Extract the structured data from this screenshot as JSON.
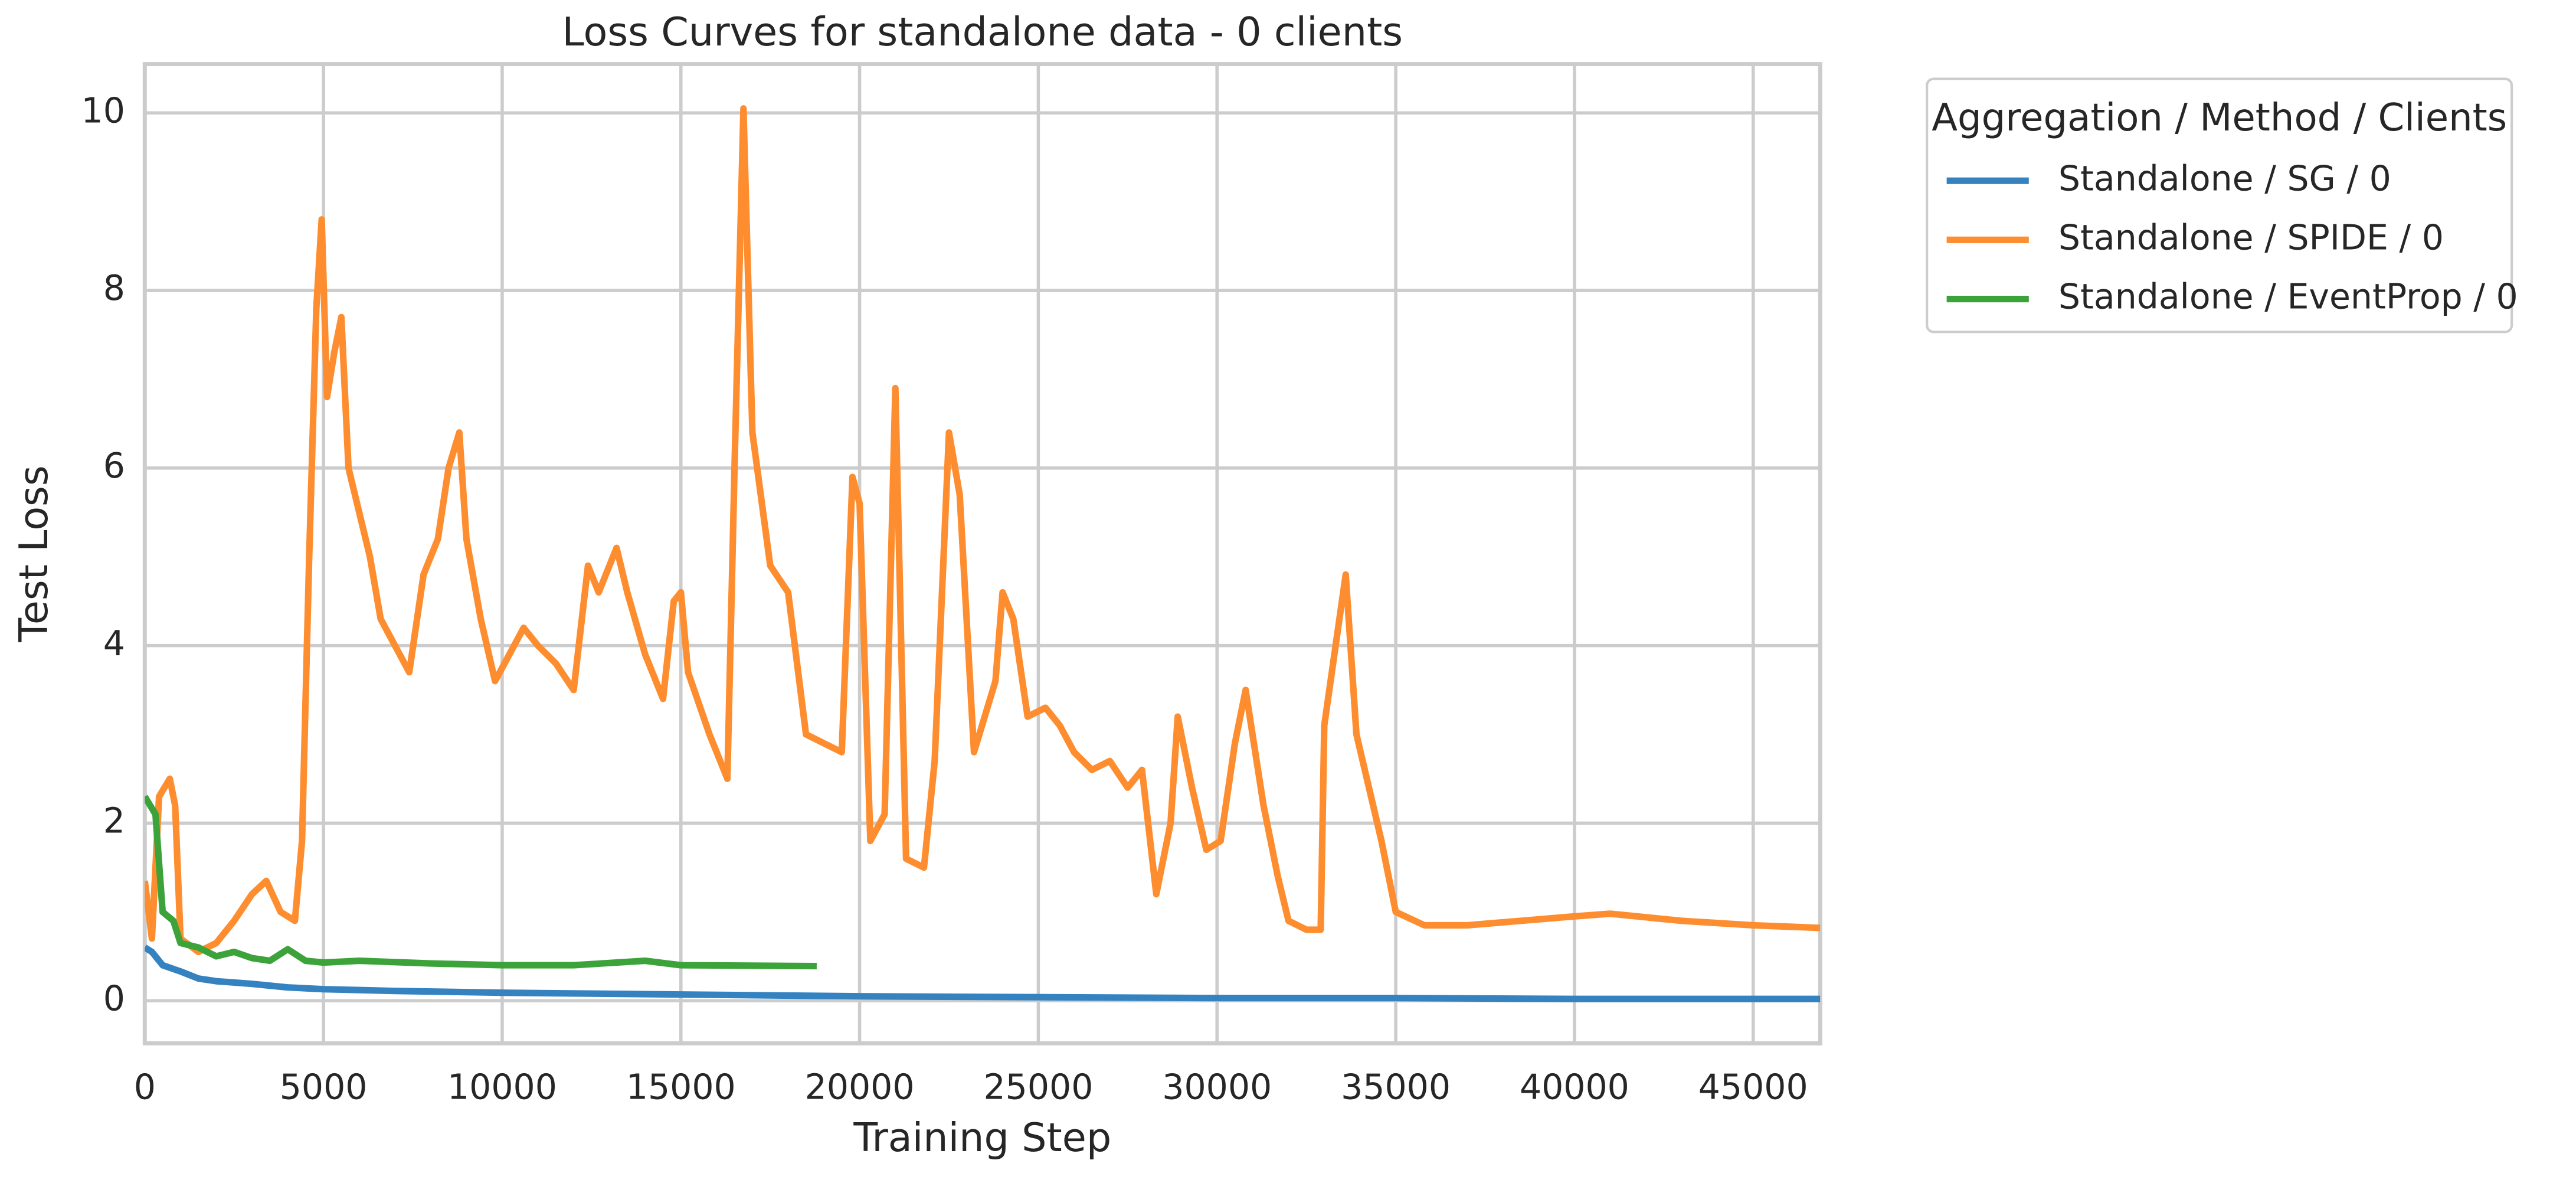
{
  "chart_data": {
    "type": "line",
    "title": "Loss Curves for standalone data - 0 clients",
    "x_label": "Training Step",
    "y_label": "Test Loss",
    "legend_title": "Aggregation / Method / Clients",
    "legend_position": "outside upper right",
    "grid": true,
    "xlim": [
      0,
      46875
    ],
    "ylim": [
      -0.48,
      10.55
    ],
    "xticks": [
      0,
      5000,
      10000,
      15000,
      20000,
      25000,
      30000,
      35000,
      40000,
      45000
    ],
    "yticks": [
      0,
      2,
      4,
      6,
      8,
      10
    ],
    "series": [
      {
        "name": "Standalone / SG / 0",
        "color": "#3582c0",
        "x": [
          0,
          200,
          500,
          1000,
          1500,
          2000,
          3000,
          4000,
          5000,
          7000,
          10000,
          15000,
          20000,
          25000,
          30000,
          35000,
          40000,
          46875
        ],
        "values": [
          0.6,
          0.55,
          0.4,
          0.33,
          0.25,
          0.22,
          0.19,
          0.15,
          0.13,
          0.11,
          0.09,
          0.07,
          0.05,
          0.04,
          0.03,
          0.03,
          0.02,
          0.02
        ]
      },
      {
        "name": "Standalone / SPIDE / 0",
        "color": "#fd8d2e",
        "x": [
          0,
          200,
          400,
          700,
          850,
          1000,
          1500,
          2000,
          2500,
          3000,
          3400,
          3800,
          4200,
          4400,
          4600,
          4800,
          4950,
          5100,
          5300,
          5500,
          5700,
          6000,
          6300,
          6600,
          7000,
          7400,
          7800,
          8200,
          8500,
          8800,
          9000,
          9400,
          9800,
          10200,
          10600,
          11000,
          11500,
          12000,
          12400,
          12700,
          13200,
          13500,
          14000,
          14500,
          14800,
          15000,
          15200,
          15800,
          16300,
          16500,
          16750,
          17000,
          17500,
          18000,
          18500,
          19000,
          19500,
          19800,
          20000,
          20300,
          20700,
          21000,
          21300,
          21800,
          22100,
          22500,
          22800,
          23200,
          23800,
          24000,
          24300,
          24700,
          25200,
          25600,
          26000,
          26500,
          27000,
          27500,
          27900,
          28300,
          28700,
          28900,
          29300,
          29700,
          30100,
          30500,
          30800,
          31300,
          31700,
          32000,
          32500,
          32900,
          33000,
          33600,
          33900,
          34600,
          35000,
          35800,
          37000,
          38500,
          40000,
          41000,
          43000,
          45000,
          46875
        ],
        "values": [
          1.35,
          0.7,
          2.3,
          2.5,
          2.2,
          0.7,
          0.55,
          0.65,
          0.9,
          1.2,
          1.35,
          1.0,
          0.9,
          1.8,
          5.0,
          7.8,
          8.8,
          6.8,
          7.3,
          7.7,
          6.0,
          5.5,
          5.0,
          4.3,
          4.0,
          3.7,
          4.8,
          5.2,
          6.0,
          6.4,
          5.2,
          4.3,
          3.6,
          3.9,
          4.2,
          4.0,
          3.8,
          3.5,
          4.9,
          4.6,
          5.1,
          4.6,
          3.9,
          3.4,
          4.5,
          4.6,
          3.7,
          3.0,
          2.5,
          6.0,
          10.05,
          6.4,
          4.9,
          4.6,
          3.0,
          2.9,
          2.8,
          5.9,
          5.6,
          1.8,
          2.1,
          6.9,
          1.6,
          1.5,
          2.7,
          6.4,
          5.7,
          2.8,
          3.6,
          4.6,
          4.3,
          3.2,
          3.3,
          3.1,
          2.8,
          2.6,
          2.7,
          2.4,
          2.6,
          1.2,
          2.0,
          3.2,
          2.4,
          1.7,
          1.8,
          2.9,
          3.5,
          2.2,
          1.4,
          0.9,
          0.8,
          0.8,
          3.1,
          4.8,
          3.0,
          1.8,
          1.0,
          0.85,
          0.85,
          0.9,
          0.95,
          0.98,
          0.9,
          0.85,
          0.82
        ]
      },
      {
        "name": "Standalone / EventProp / 0",
        "color": "#3ca33a",
        "x": [
          0,
          300,
          500,
          800,
          1000,
          1500,
          2000,
          2500,
          3000,
          3500,
          4000,
          4500,
          5000,
          6000,
          8000,
          10000,
          12000,
          14000,
          15000,
          18800
        ],
        "values": [
          2.3,
          2.1,
          1.0,
          0.9,
          0.65,
          0.6,
          0.5,
          0.55,
          0.48,
          0.45,
          0.58,
          0.45,
          0.43,
          0.45,
          0.42,
          0.4,
          0.4,
          0.45,
          0.4,
          0.39
        ]
      }
    ]
  }
}
